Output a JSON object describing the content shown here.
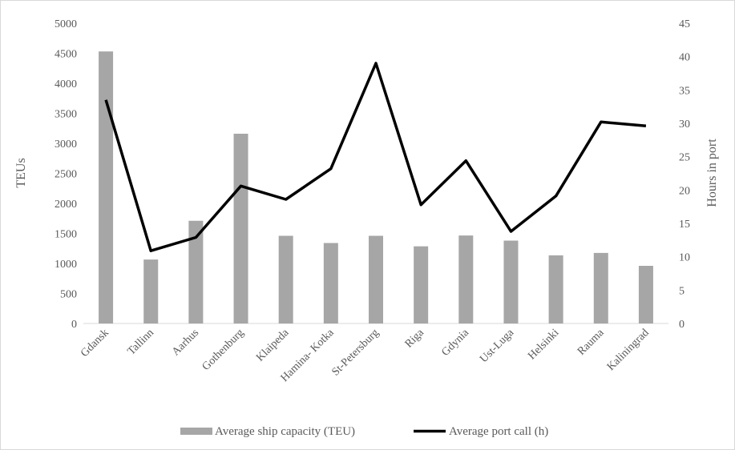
{
  "chart_data": {
    "type": "bar+line",
    "categories": [
      "Gdansk",
      "Tallinn",
      "Aarhus",
      "Gothenburg",
      "Klaipeda",
      "Hamina- Kotka",
      "St-Petersburg",
      "Riga",
      "Gdynia",
      "Ust-Luga",
      "Helsinki",
      "Rauma",
      "Kaliningrad"
    ],
    "series": [
      {
        "name": "Average ship capacity (TEU)",
        "type": "bar",
        "axis": "left",
        "color": "#a6a6a6",
        "values": [
          4530,
          1065,
          1710,
          3160,
          1460,
          1340,
          1460,
          1285,
          1465,
          1380,
          1135,
          1175,
          960
        ]
      },
      {
        "name": "Average port call (h)",
        "type": "line",
        "axis": "right",
        "color": "#000000",
        "values": [
          33.5,
          10.9,
          12.9,
          20.6,
          18.6,
          23.2,
          39.0,
          17.8,
          24.4,
          13.8,
          19.1,
          30.2,
          29.6
        ]
      }
    ],
    "ylabel": "TEUs",
    "y2label": "Hours in port",
    "ylim": [
      0,
      5000
    ],
    "y2lim": [
      0,
      45
    ],
    "yticks": [
      "0",
      "500",
      "1000",
      "1500",
      "2000",
      "2500",
      "3000",
      "3500",
      "4000",
      "4500",
      "5000"
    ],
    "y2ticks": [
      "0",
      "5",
      "10",
      "15",
      "20",
      "25",
      "30",
      "35",
      "40",
      "45"
    ],
    "grid": false,
    "legend_position": "bottom"
  }
}
